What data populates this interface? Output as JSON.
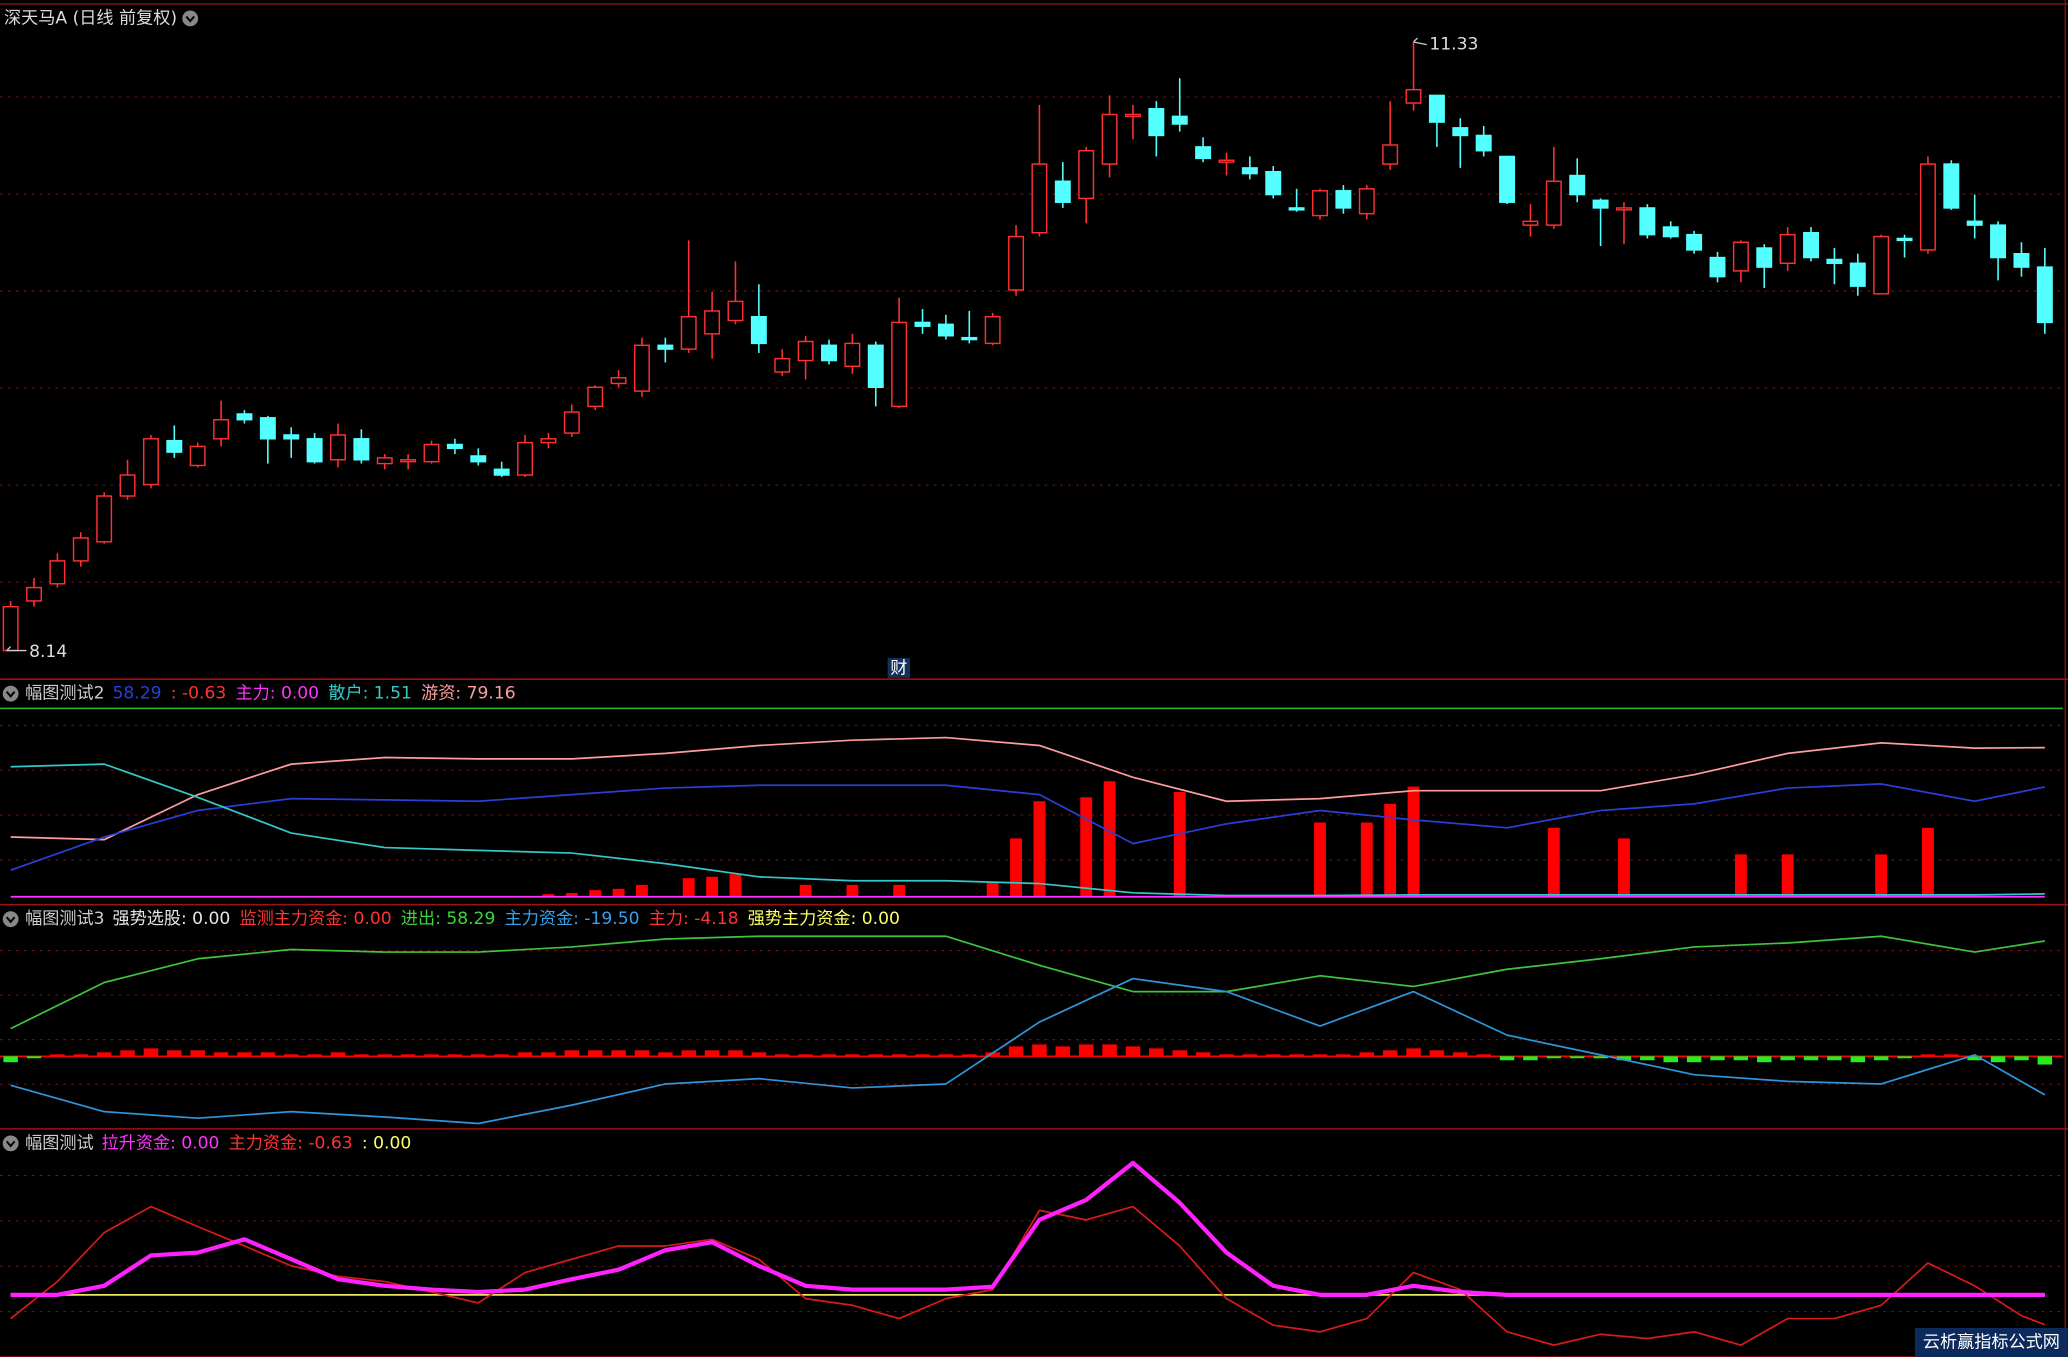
{
  "chart_data": [
    {
      "type": "candlestick",
      "title": "深天马A (日线 前复权)",
      "open": [
        8.14,
        8.4,
        8.49,
        8.61,
        8.71,
        8.95,
        9.01,
        9.24,
        9.11,
        9.25,
        9.38,
        9.36,
        9.27,
        9.25,
        9.14,
        9.25,
        9.12,
        9.13,
        9.13,
        9.22,
        9.16,
        9.09,
        9.06,
        9.23,
        9.28,
        9.42,
        9.54,
        9.5,
        9.74,
        9.72,
        9.8,
        9.87,
        9.89,
        9.6,
        9.66,
        9.74,
        9.63,
        9.74,
        9.42,
        9.86,
        9.85,
        9.78,
        9.75,
        10.03,
        10.33,
        10.6,
        10.51,
        10.69,
        10.94,
        10.98,
        10.94,
        10.78,
        10.7,
        10.67,
        10.65,
        10.46,
        10.42,
        10.55,
        10.43,
        10.69,
        11.01,
        11.05,
        10.88,
        10.84,
        10.73,
        10.37,
        10.37,
        10.63,
        10.5,
        10.45,
        10.46,
        10.36,
        10.32,
        10.2,
        10.13,
        10.25,
        10.17,
        10.33,
        10.19,
        10.17,
        10.01,
        10.3,
        10.24,
        10.69,
        10.39,
        10.37,
        10.22,
        10.15
      ],
      "close": [
        8.37,
        8.47,
        8.61,
        8.73,
        8.95,
        9.06,
        9.25,
        9.18,
        9.21,
        9.35,
        9.35,
        9.25,
        9.25,
        9.13,
        9.27,
        9.14,
        9.15,
        9.14,
        9.22,
        9.2,
        9.13,
        9.06,
        9.23,
        9.25,
        9.39,
        9.52,
        9.57,
        9.74,
        9.72,
        9.89,
        9.92,
        9.97,
        9.75,
        9.67,
        9.76,
        9.66,
        9.75,
        9.52,
        9.86,
        9.84,
        9.79,
        9.77,
        9.89,
        10.31,
        10.69,
        10.49,
        10.76,
        10.95,
        10.95,
        10.84,
        10.9,
        10.72,
        10.71,
        10.64,
        10.53,
        10.45,
        10.55,
        10.46,
        10.56,
        10.79,
        11.08,
        10.91,
        10.84,
        10.76,
        10.49,
        10.39,
        10.6,
        10.53,
        10.46,
        10.46,
        10.32,
        10.31,
        10.24,
        10.1,
        10.28,
        10.15,
        10.32,
        10.2,
        10.17,
        10.05,
        10.31,
        10.29,
        10.69,
        10.46,
        10.37,
        10.2,
        10.15,
        9.86
      ],
      "high": [
        8.4,
        8.52,
        8.65,
        8.76,
        8.97,
        9.14,
        9.27,
        9.32,
        9.23,
        9.45,
        9.4,
        9.37,
        9.31,
        9.28,
        9.33,
        9.3,
        9.17,
        9.17,
        9.24,
        9.25,
        9.2,
        9.13,
        9.27,
        9.28,
        9.43,
        9.53,
        9.61,
        9.78,
        9.78,
        10.29,
        10.02,
        10.18,
        10.06,
        9.72,
        9.79,
        9.77,
        9.8,
        9.76,
        9.99,
        9.93,
        9.9,
        9.92,
        9.91,
        10.37,
        11.0,
        10.7,
        10.78,
        11.05,
        11.0,
        11.02,
        11.14,
        10.83,
        10.75,
        10.73,
        10.68,
        10.56,
        10.56,
        10.58,
        10.58,
        11.02,
        11.33,
        11.05,
        10.93,
        10.89,
        10.73,
        10.48,
        10.78,
        10.72,
        10.51,
        10.49,
        10.48,
        10.39,
        10.34,
        10.23,
        10.29,
        10.27,
        10.36,
        10.36,
        10.25,
        10.22,
        10.32,
        10.32,
        10.73,
        10.71,
        10.53,
        10.39,
        10.28,
        10.25
      ],
      "low": [
        8.14,
        8.37,
        8.47,
        8.58,
        8.7,
        8.93,
        8.99,
        9.15,
        9.1,
        9.21,
        9.33,
        9.12,
        9.15,
        9.12,
        9.1,
        9.12,
        9.09,
        9.09,
        9.12,
        9.17,
        9.11,
        9.05,
        9.05,
        9.2,
        9.26,
        9.4,
        9.52,
        9.47,
        9.65,
        9.7,
        9.67,
        9.85,
        9.7,
        9.58,
        9.56,
        9.64,
        9.59,
        9.42,
        9.41,
        9.8,
        9.77,
        9.75,
        9.74,
        10.0,
        10.31,
        10.46,
        10.38,
        10.62,
        10.82,
        10.73,
        10.86,
        10.7,
        10.63,
        10.61,
        10.51,
        10.44,
        10.4,
        10.43,
        10.4,
        10.66,
        10.97,
        10.78,
        10.67,
        10.73,
        10.48,
        10.31,
        10.35,
        10.49,
        10.26,
        10.27,
        10.3,
        10.3,
        10.22,
        10.07,
        10.07,
        10.04,
        10.13,
        10.18,
        10.06,
        10.0,
        10.01,
        10.2,
        10.22,
        10.45,
        10.3,
        10.08,
        10.1,
        9.8
      ],
      "up_color": "#ff3030",
      "down_color": "#54ffff",
      "ylim": [
        7.99,
        11.55
      ],
      "grid": true,
      "max_label": "11.33",
      "min_label": "8.14",
      "marker_text": "财"
    },
    {
      "type": "line",
      "title": "幅图测试2",
      "legend": [
        {
          "text": "58.29",
          "color": "#2a3fd8"
        },
        {
          "text": ": -0.63",
          "color": "#ff3333"
        },
        {
          "text": "主力: 0.00",
          "color": "#ff33ff"
        },
        {
          "text": "散户: 1.51",
          "color": "#33cccc"
        },
        {
          "text": "游资: 79.16",
          "color": "#ff9c9c"
        }
      ],
      "ylim": [
        -4.2,
        114.8
      ],
      "grid": true,
      "hlines": [
        {
          "value": 100,
          "color": "#2fb82f"
        }
      ],
      "series": [
        {
          "type": "bar",
          "color": "#ff0000",
          "x": [
            23,
            24,
            25,
            26,
            27,
            29,
            30,
            31,
            34,
            36,
            38,
            42,
            43,
            44,
            46,
            47,
            50,
            56,
            58,
            59,
            60,
            66,
            69,
            74,
            76,
            80,
            82
          ],
          "values": [
            1.4,
            2,
            3.5,
            4.2,
            6.3,
            9.9,
            10.6,
            12,
            6.3,
            6.3,
            6.3,
            7.7,
            31,
            50.7,
            52.8,
            61.3,
            55.6,
            39.4,
            39.4,
            49.3,
            58.5,
            36.6,
            31,
            22.5,
            22.5,
            22.5,
            36.6
          ]
        },
        {
          "color": "#ff9c9c",
          "x": [
            0,
            4,
            8,
            12,
            16,
            20,
            24,
            28,
            32,
            36,
            40,
            44,
            48,
            52,
            56,
            60,
            64,
            68,
            72,
            76,
            80,
            84,
            87
          ],
          "values": [
            31.7,
            30.3,
            54.2,
            70.4,
            73.9,
            73.2,
            73.2,
            76.1,
            80.3,
            83.1,
            84.5,
            80.3,
            63.4,
            50.7,
            52.1,
            56.3,
            56.3,
            56.3,
            64.8,
            76.1,
            81.7,
            78.9,
            79.16
          ]
        },
        {
          "color": "#2a3fd8",
          "x": [
            0,
            4,
            8,
            12,
            16,
            20,
            24,
            28,
            32,
            36,
            40,
            44,
            48,
            52,
            56,
            60,
            64,
            68,
            72,
            76,
            80,
            84,
            87
          ],
          "values": [
            14.1,
            31.7,
            45.8,
            52.1,
            51.4,
            50.7,
            54.2,
            57.7,
            59.2,
            59.2,
            59.2,
            54.2,
            28.2,
            38.7,
            45.8,
            40.8,
            36.6,
            45.8,
            49.3,
            57.7,
            59.9,
            50.7,
            58.29
          ]
        },
        {
          "color": "#35c8c8",
          "x": [
            0,
            4,
            8,
            12,
            16,
            20,
            24,
            28,
            32,
            36,
            40,
            44,
            48,
            52,
            56,
            60,
            64,
            68,
            72,
            76,
            80,
            84,
            87
          ],
          "values": [
            69.0,
            70.4,
            52.8,
            33.8,
            26.1,
            24.6,
            23.2,
            17.6,
            10.6,
            8.5,
            8.5,
            7.0,
            2.1,
            0.7,
            0.7,
            1.0,
            1.0,
            1.0,
            1.0,
            1.0,
            1.0,
            1.0,
            1.51
          ]
        },
        {
          "color": "#ff33ff",
          "x": [
            0,
            87
          ],
          "values": [
            0,
            0
          ]
        }
      ]
    },
    {
      "type": "line",
      "title": "幅图测试3",
      "legend": [
        {
          "text": "强势选股: 0.00",
          "color": "#e6e6e6"
        },
        {
          "text": "监测主力资金: 0.00",
          "color": "#ff3333"
        },
        {
          "text": "进出: 58.29",
          "color": "#3fd23f"
        },
        {
          "text": "主力资金: -19.50",
          "color": "#3aa0e8"
        },
        {
          "text": "主力: -4.18",
          "color": "#ff3333"
        },
        {
          "text": "强势主力资金: 0.00",
          "color": "#ffff66"
        }
      ],
      "ylim": [
        -36.7,
        76
      ],
      "grid": true,
      "hlines": [
        {
          "value": 0,
          "color": "#ff0000"
        }
      ],
      "series": [
        {
          "type": "bar",
          "color": "#ff0000",
          "down_color": "#22ee22",
          "values": [
            -3,
            -1,
            1,
            1,
            2,
            3,
            4,
            3,
            3,
            2,
            2,
            2,
            1,
            1,
            2,
            1,
            1,
            1,
            1,
            1,
            1,
            1,
            2,
            2,
            3,
            3,
            3,
            3,
            2,
            3,
            3,
            3,
            2,
            1,
            1,
            1,
            1,
            1,
            1,
            1,
            1,
            1,
            2,
            5,
            6,
            5,
            6,
            6,
            5,
            4,
            3,
            2,
            1,
            1,
            1,
            1,
            1,
            1,
            2,
            3,
            4,
            3,
            2,
            1,
            -2,
            -2,
            -1,
            -1,
            -1,
            -2,
            -2,
            -3,
            -3,
            -2,
            -2,
            -3,
            -2,
            -2,
            -2,
            -3,
            -2,
            -1,
            1,
            1,
            -2,
            -3,
            -2,
            -4.18
          ]
        },
        {
          "color": "#3fc43f",
          "x": [
            0,
            4,
            8,
            12,
            16,
            20,
            24,
            28,
            32,
            36,
            40,
            44,
            48,
            52,
            56,
            60,
            64,
            68,
            72,
            76,
            80,
            84,
            87
          ],
          "values": [
            14,
            37.3,
            49.3,
            54,
            52.7,
            52.7,
            55.3,
            59.3,
            60.7,
            60.7,
            60.7,
            46,
            32.7,
            32.7,
            40.7,
            35.3,
            44,
            49.3,
            55.3,
            57.3,
            60.7,
            52.7,
            58.29
          ]
        },
        {
          "color": "#2f95dc",
          "x": [
            0,
            4,
            8,
            12,
            16,
            20,
            24,
            28,
            32,
            36,
            40,
            44,
            48,
            52,
            56,
            60,
            64,
            68,
            72,
            76,
            80,
            84,
            87
          ],
          "values": [
            -14.7,
            -28,
            -31.3,
            -28,
            -30.7,
            -34,
            -24.7,
            -14,
            -11.3,
            -16,
            -14,
            17.3,
            39.3,
            32.7,
            15.3,
            32.7,
            10.7,
            0.7,
            -9.3,
            -12.7,
            -14,
            0.7,
            -19.5
          ]
        }
      ]
    },
    {
      "type": "line",
      "title": "幅图测试",
      "legend": [
        {
          "text": "拉升资金: 0.00",
          "color": "#ff33ff"
        },
        {
          "text": "主力资金: -0.63",
          "color": "#ff3333"
        },
        {
          "text": ": 0.00",
          "color": "#ffff66"
        }
      ],
      "ylim": [
        -1.31,
        3.47
      ],
      "grid": true,
      "series": [
        {
          "color": "#e8e85a",
          "x": [
            0,
            87
          ],
          "values": [
            0,
            0
          ]
        },
        {
          "color": "#d81a1a",
          "x": [
            0,
            2,
            4,
            6,
            8,
            10,
            12,
            14,
            16,
            18,
            20,
            22,
            24,
            26,
            28,
            30,
            32,
            34,
            36,
            38,
            40,
            42,
            44,
            46,
            48,
            50,
            52,
            54,
            56,
            58,
            60,
            62,
            64,
            66,
            68,
            70,
            72,
            74,
            76,
            78,
            80,
            82,
            84,
            86,
            87
          ],
          "values": [
            -0.5,
            0.28,
            1.31,
            1.86,
            1.44,
            1.03,
            0.61,
            0.39,
            0.28,
            0.06,
            -0.17,
            0.47,
            0.75,
            1.03,
            1.03,
            1.17,
            0.75,
            -0.08,
            -0.22,
            -0.5,
            -0.08,
            0.11,
            1.78,
            1.58,
            1.86,
            1.03,
            -0.08,
            -0.64,
            -0.78,
            -0.5,
            0.47,
            0.11,
            -0.78,
            -1.06,
            -0.83,
            -0.92,
            -0.78,
            -1.06,
            -0.5,
            -0.5,
            -0.22,
            0.67,
            0.19,
            -0.44,
            -0.63
          ]
        },
        {
          "color": "#ff22ff",
          "style": "thick",
          "x": [
            0,
            2,
            4,
            6,
            8,
            10,
            12,
            14,
            16,
            18,
            20,
            22,
            24,
            26,
            28,
            30,
            32,
            34,
            36,
            38,
            40,
            42,
            44,
            46,
            48,
            50,
            52,
            54,
            56,
            58,
            60,
            62,
            64,
            66,
            68,
            70,
            72,
            74,
            76,
            78,
            80,
            82,
            84,
            86,
            87
          ],
          "values": [
            0,
            0,
            0.19,
            0.83,
            0.89,
            1.17,
            0.75,
            0.33,
            0.19,
            0.11,
            0.06,
            0.11,
            0.33,
            0.53,
            0.94,
            1.11,
            0.61,
            0.19,
            0.11,
            0.11,
            0.11,
            0.17,
            1.58,
            2.0,
            2.78,
            1.94,
            0.89,
            0.19,
            0,
            0,
            0.19,
            0.06,
            0,
            0,
            0,
            0,
            0,
            0,
            0,
            0,
            0,
            0,
            0,
            0,
            0
          ]
        }
      ]
    }
  ],
  "watermark": "云析赢指标公式网"
}
